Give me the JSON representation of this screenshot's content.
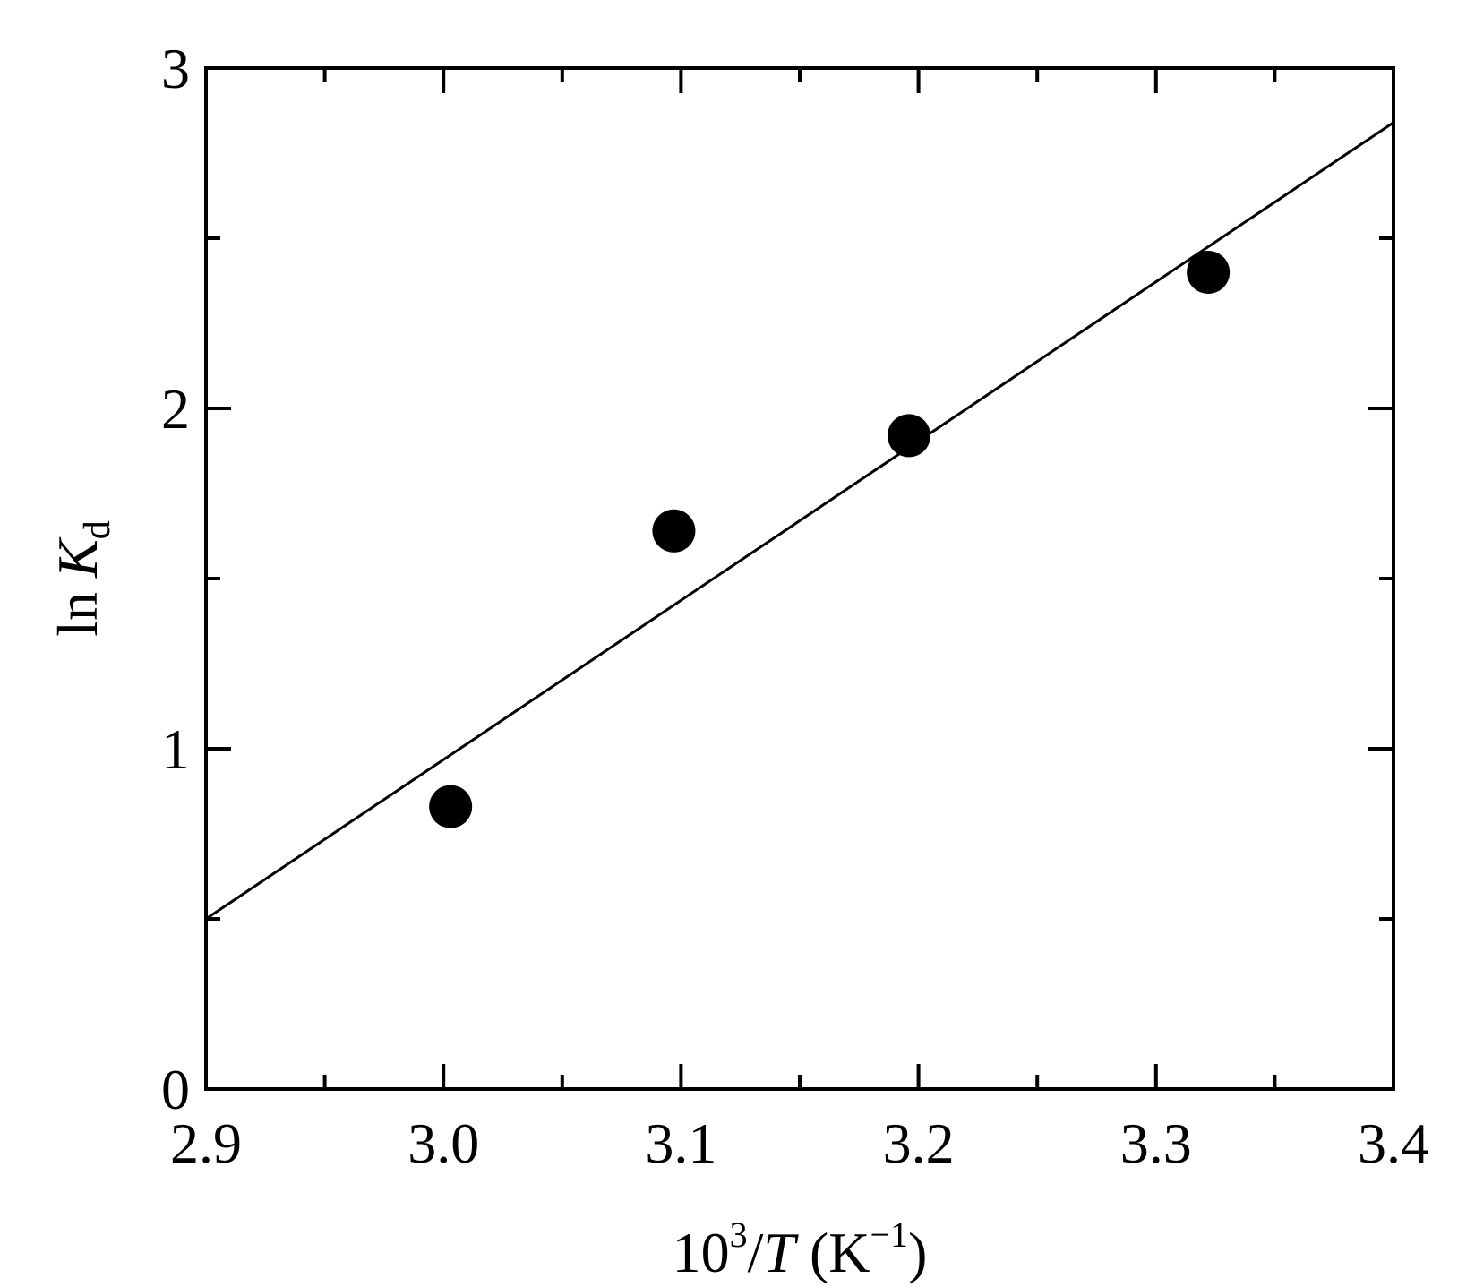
{
  "chart_data": {
    "type": "scatter",
    "title": "",
    "xlabel": {
      "base": "10",
      "base_sup": "3",
      "slash": "/",
      "var": "T",
      "unit_open": " (K",
      "unit_sup": "−1",
      "unit_close": ")"
    },
    "ylabel": {
      "prefix": "ln ",
      "var": "K",
      "sub": "d"
    },
    "xlim": [
      2.9,
      3.4
    ],
    "ylim": [
      0,
      3
    ],
    "x_major_ticks": [
      2.9,
      3.0,
      3.1,
      3.2,
      3.3,
      3.4
    ],
    "x_tick_labels": [
      "2.9",
      "3.0",
      "3.1",
      "3.2",
      "3.3",
      "3.4"
    ],
    "x_minor_ticks": [
      2.95,
      3.05,
      3.15,
      3.25,
      3.35
    ],
    "y_major_ticks": [
      0,
      1,
      2,
      3
    ],
    "y_tick_labels": [
      "0",
      "1",
      "2",
      "3"
    ],
    "y_minor_ticks": [
      0.5,
      1.5,
      2.5
    ],
    "grid": false,
    "series": [
      {
        "kind": "points",
        "marker": "filled-circle",
        "color": "#000000",
        "x": [
          3.003,
          3.097,
          3.196,
          3.322
        ],
        "y": [
          0.83,
          1.64,
          1.92,
          2.4
        ]
      },
      {
        "kind": "fit-line",
        "color": "#000000",
        "x": [
          2.9,
          3.4
        ],
        "y": [
          0.5,
          2.84
        ]
      }
    ]
  }
}
